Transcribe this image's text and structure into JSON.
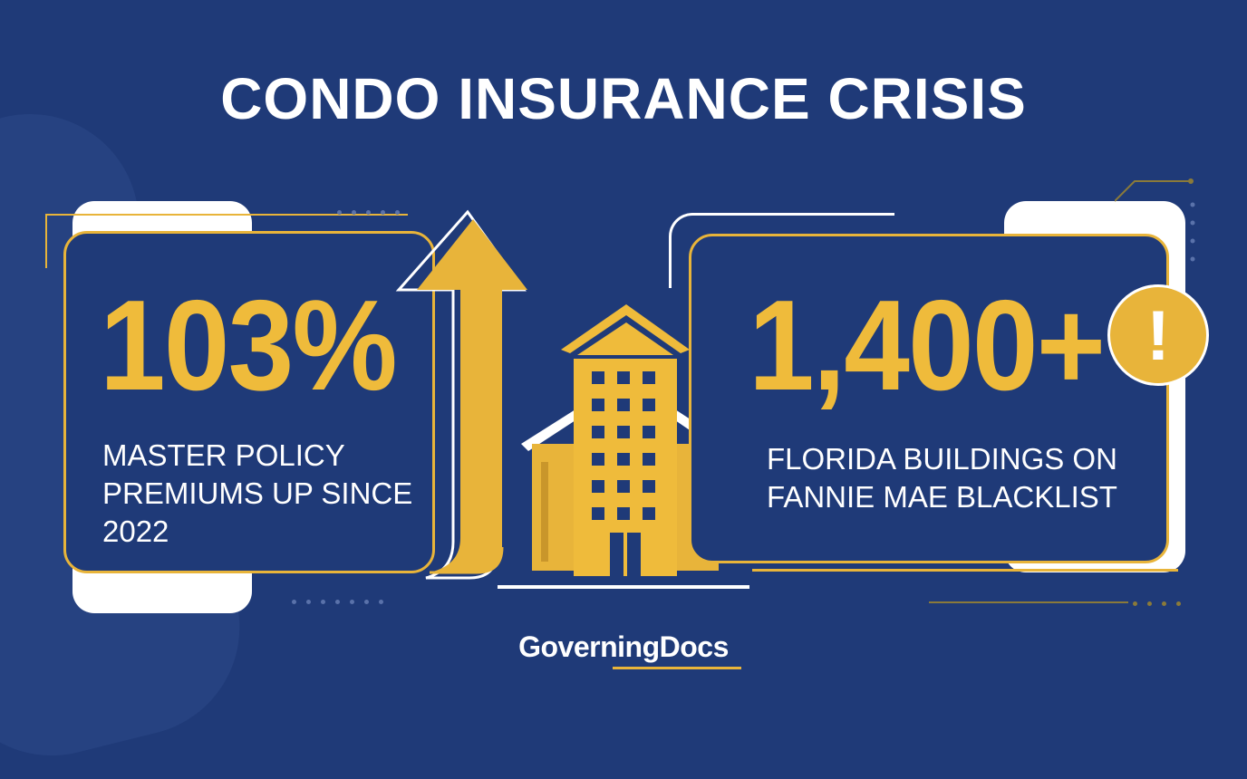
{
  "title": "CONDO INSURANCE CRISIS",
  "left_stat": {
    "value": "103%",
    "description": "MASTER POLICY PREMIUMS UP SINCE 2022"
  },
  "right_stat": {
    "value": "1,400+",
    "description": "FLORIDA BUILDINGS ON FANNIE MAE BLACKLIST"
  },
  "alert_glyph": "!",
  "brand": {
    "part1": "Governing",
    "part2": "Docs"
  },
  "icons": [
    "up-arrow-icon",
    "building-icon",
    "alert-icon"
  ],
  "colors": {
    "background": "#1f3a78",
    "accent": "#e8b43a",
    "text": "#ffffff"
  }
}
